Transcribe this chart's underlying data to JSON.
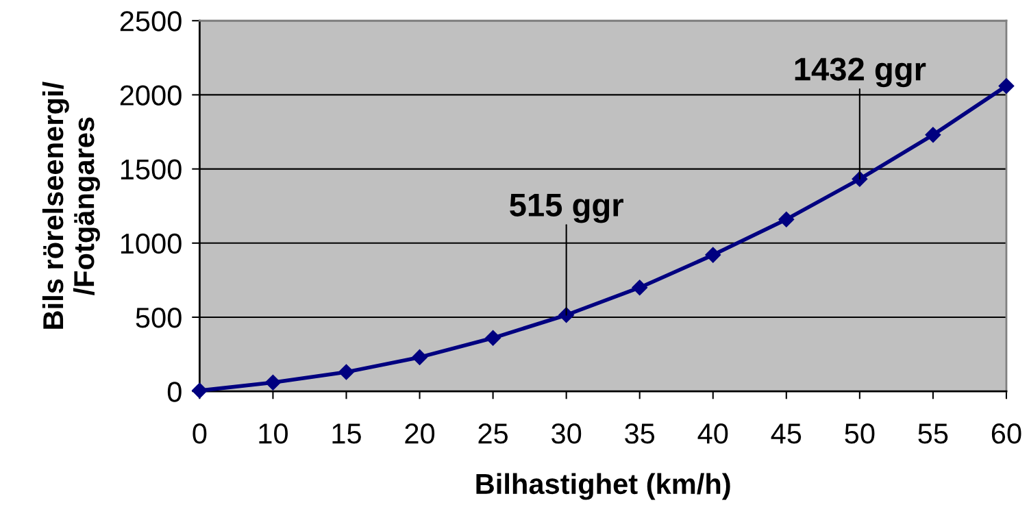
{
  "chart_data": {
    "type": "line",
    "xlabel": "Bilhastighet (km/h)",
    "ylabel": "Bils rörelseenergi/\n/Fotgängares",
    "categories": [
      "0",
      "10",
      "15",
      "20",
      "25",
      "30",
      "35",
      "40",
      "45",
      "50",
      "55",
      "60"
    ],
    "series": [
      {
        "color": "#000080",
        "values": [
          5,
          60,
          130,
          230,
          360,
          515,
          700,
          920,
          1160,
          1432,
          1730,
          2060
        ]
      }
    ],
    "ylim": [
      0,
      2500
    ],
    "yticks": [
      0,
      500,
      1000,
      1500,
      2000,
      2500
    ],
    "grid": "y",
    "marker": "diamond",
    "line_style": "solid",
    "annotations": [
      {
        "text": "515 ggr",
        "x": "30",
        "y": 515
      },
      {
        "text": "1432 ggr",
        "x": "50",
        "y": 1432
      }
    ]
  }
}
